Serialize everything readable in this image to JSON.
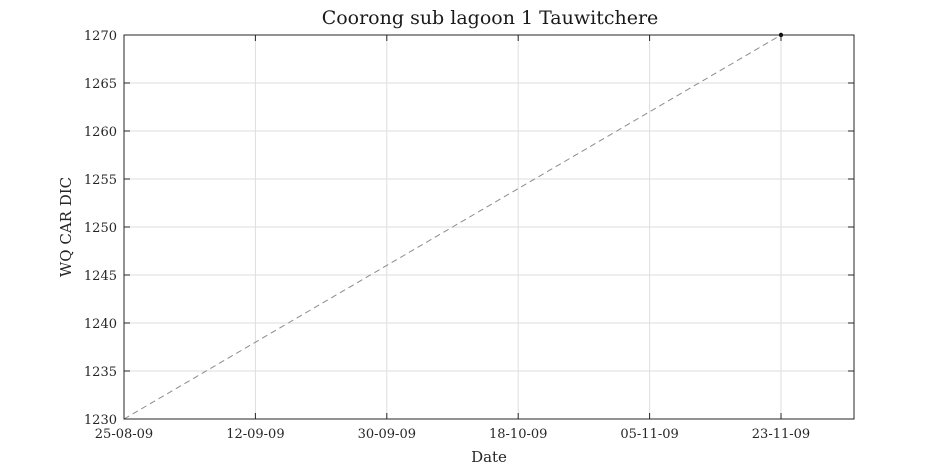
{
  "chart_data": {
    "type": "line",
    "title": "Coorong sub lagoon 1 Tauwitchere",
    "xlabel": "Date",
    "ylabel": "WQ CAR DIC",
    "x_tick_labels": [
      "25-08-09",
      "12-09-09",
      "30-09-09",
      "18-10-09",
      "05-11-09",
      "23-11-09"
    ],
    "x_ticks": [
      "2009-08-25",
      "2009-09-12",
      "2009-09-30",
      "2009-10-18",
      "2009-11-05",
      "2009-11-23"
    ],
    "xlim": [
      "2009-08-25",
      "2009-12-03"
    ],
    "ylim": [
      1230,
      1270
    ],
    "y_ticks": [
      1230,
      1235,
      1240,
      1245,
      1250,
      1255,
      1260,
      1265,
      1270
    ],
    "grid": true,
    "series": [
      {
        "line_style": "dashed",
        "color": "#8c8c8c",
        "x": [
          "2009-08-25",
          "2009-11-23"
        ],
        "y": [
          1230,
          1270
        ],
        "marker_points": [
          {
            "x": "2009-11-23",
            "y": 1270
          }
        ]
      }
    ]
  }
}
